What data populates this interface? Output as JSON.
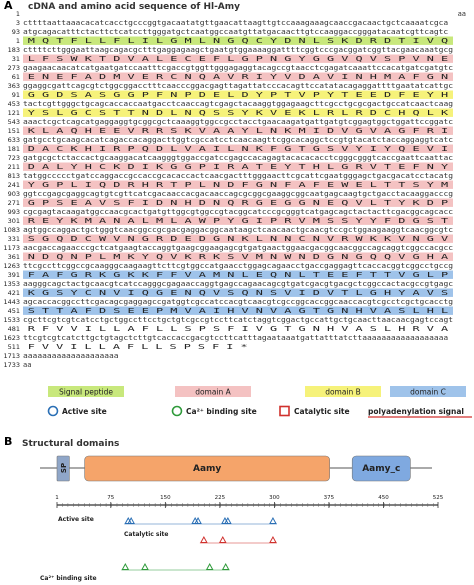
{
  "panel_a": {
    "label": "A",
    "title": "cDNA and amino acid sequence of Hl-Amy",
    "top_num": 1,
    "top_tail": "aa",
    "rows": [
      {
        "num": 3,
        "nt": "cttttaattaaacacatcacctgcccggtgacaatatgttgaacattaagttgtccaaagaaagcaaccgacaactgctcaaaatcgca"
      },
      {
        "num": 93,
        "nt": "atgcagacatttctacttctcatccttgggatgctcaatggccaatgttatgacaacttgtccaaggaccgggatacaatcgttcagtc"
      },
      {
        "num": 1,
        "aa": "MQTFLLFLILGMLNGQCYDNLSKDRDTIVQ",
        "color": "#c8e87c"
      },
      {
        "num": 183,
        "nt": "cttttcttgggaattaagcagacgctttgaggagaagctgaatgtggaaaaggattttcggtcccgacggatcggttacgaacaaatgcg"
      },
      {
        "num": 31,
        "aa": "LFSWKTDVALECEFLGPNGYGGVQVSPVNE",
        "color": "#f4c2c2"
      },
      {
        "num": 273,
        "nt": "gaagaacaacatcatgaatgatccaatttcgaccgtggttgggagaggtacagccgtaacctcgagatcaaattccacatgatcgatgtc"
      },
      {
        "num": 61,
        "aa": "ENEFADMVERCNQAVRIYVDAVINHMAFGN",
        "color": "#f4c2c2"
      },
      {
        "num": 363,
        "nt": "ggaggcgattcagcgtctggcggacctttcaacccggacgagttagattatcccacagttccatatacagaggattttgaatatcattgc"
      },
      {
        "num": 91,
        "aa": "GGDSASGGPFNPDELDYPTVPYTEEDFEYH",
        "color": "#f6f27a"
      },
      {
        "num": 453,
        "nt": "tactcgttgggctgcagcaccaccaatgacctcaaccagtcgagctacaaggtggagaagcttcgcctgcgcgactgccatcaactcaag"
      },
      {
        "num": 121,
        "aa": "YSLGCSTTNDLNQSSYKVEKLRLRDCHQLK",
        "color": "#f6f27a"
      },
      {
        "num": 543,
        "nt": "aaactcgctcagcatgaggaggtgcggcgctcaaaggtggccgcctacctgaacaagatgattgatgtcggagtggctggattccggatc"
      },
      {
        "num": 151,
        "aa": "KLAQHEEVRRSKVAAYLNKMIDVGVAGFRI",
        "color": "#f4c2c2"
      },
      {
        "num": 633,
        "nt": "gatgcctgcaagcacatcagaccacaggacttggtcgccatcctcaacaagttcggcacaggctccgtgtacatctaccaggaggtcatc"
      },
      {
        "num": 181,
        "aa": "DACKHIRPQDLVAILNKFGTGSVYIYQEVI",
        "color": "#f4c2c2"
      },
      {
        "num": 723,
        "nt": "gatgcgctctaccactgcaaggacatcaagggtggaccgatccgagccacagagtacacacacctcgggcgggtcaccgaattcaattac"
      },
      {
        "num": 211,
        "aa": "DALYHCKDIKGGPIRATEYTHLGRVTEFNY",
        "color": "#f4c2c2"
      },
      {
        "num": 813,
        "nt": "tatggccccctgatccaggaccgccaccgcacaccactcaacgactttgggaacttcgcattcgaatgggagctgacgacatcctacatg"
      },
      {
        "num": 241,
        "aa": "YGPLIQDRHRTPLNDFGNFAFEWELTTSYM",
        "color": "#f4c2c2"
      },
      {
        "num": 903,
        "nt": "ggtccgagcgaggcagtgtcgttcatcgacaaccacgacaaccagcgcggcgaaggcggcaatgagcaagtgctgacctacaaggacccg"
      },
      {
        "num": 271,
        "aa": "GPSEAVSFIDNHDNQRGEGGNEQVLTYKDP",
        "color": "#f4c2c2"
      },
      {
        "num": 993,
        "nt": "cgcgagtacaagatggccaacgcactgatgttggcgtggccgtacggcatcccgcgggtcatgagcagctactacttcgacggcagcacc"
      },
      {
        "num": 301,
        "aa": "REYKMANALMLAWPYGIPRVMSSYYFDGST",
        "color": "#f4c2c2"
      },
      {
        "num": 1083,
        "nt": "agtggccaggactgctgggtcaacggccgcgacgaggacggcaataagctcaacaactgcaacgtccgctggaagaaggtcaacggcgtc"
      },
      {
        "num": 331,
        "aa": "SGQDCWVNGRDEDGNKLNNCNVRWKKVNGV",
        "color": "#f4c2c2"
      },
      {
        "num": 1173,
        "nt": "aacgaccagaacccgctcatgaagtaccaggtgaagcggaagagcgtgatgaactggaacgacggcaacggccagcaggtcggccacgcc"
      },
      {
        "num": 361,
        "aa": "NDQNPLMKYQVKRKSVMNWNDGNGQQVGHA",
        "color": "#f4c2c2"
      },
      {
        "num": 1263,
        "nt": "ttcgccttcggccgcaagggcaagaagttcttcgtggccatgaacctggagcagaacctgaccgaggagttcaccacggtcggcctgccg"
      },
      {
        "num": 391,
        "aa": "FAFGRKGKKFFVAMNLEQNLTEEFTTVGLP",
        "color": "#9fc3ea"
      },
      {
        "num": 1353,
        "nt": "aagggcagctactgcaacgtcatccagggcgagaaccaggtgagccagaacagcgtgatcgacgtgacgctcggccactacgccgtgagc"
      },
      {
        "num": 421,
        "aa": "KGSYCNVIQGENQVSQNSVIDVTLGHYAVS",
        "color": "#9fc3ea"
      },
      {
        "num": 1443,
        "nt": "agcaccacggccttcgacagcgaggagccgatggtcgccatccacgtcaacgtcgccggcaccggcaaccacgtcgcctcgctgcacctg"
      },
      {
        "num": 451,
        "aa": "STTAFDSEEPMVAIHVNVAGTGNHVASLHL",
        "color": "#9fc3ea"
      },
      {
        "num": 1533,
        "nt": "cgcttcgtcgtcatcctgctggccttcctgctgtcgccgtccttcatctaggtcggactgccattgctgcaacttaacaacgagtccagt"
      },
      {
        "num": 481,
        "aa": "RFVVILLAFLLSPSFIVGTGNHVASLHRVA",
        "color": "#ffffff"
      },
      {
        "num": 1623,
        "nt": "ttcgtcgtcatcttgctgtagctcttgtcaccaccgacgtccttcatttagaataaatgattatttatcttaaaaaaaaaaaaaaaaaa"
      },
      {
        "num": 511,
        "aa": "FVVILLAFLLSPSFI*",
        "color": "#ffffff"
      },
      {
        "num": 1713,
        "nt": "aaaaaaaaaaaaaaaaaaaa"
      }
    ],
    "end_num": 1733,
    "end_tail": "aa",
    "legend": [
      {
        "label": "Signal peptide",
        "color": "#c8e87c",
        "kind": "box"
      },
      {
        "label": "domain A",
        "color": "#f4c2c2",
        "kind": "box"
      },
      {
        "label": "domain B",
        "color": "#f6f27a",
        "kind": "box"
      },
      {
        "label": "domain C",
        "color": "#9fc3ea",
        "kind": "box"
      },
      {
        "label": "Active site",
        "color": "#2a6fb5",
        "kind": "circle"
      },
      {
        "label": "Ca²⁺ binding site",
        "color": "#2e9a3a",
        "kind": "circle"
      },
      {
        "label": "Catalytic site",
        "color": "#d0312d",
        "kind": "square"
      },
      {
        "label": "polyadenylation signal",
        "color": "#d0312d",
        "kind": "underline"
      }
    ]
  },
  "panel_b": {
    "label": "B",
    "title": "Structural domains",
    "xlim": [
      1,
      525
    ],
    "xticks": [
      1,
      75,
      150,
      225,
      300,
      375,
      450,
      525
    ],
    "domains": [
      {
        "name": "SP",
        "start": 1,
        "end": 18,
        "color": "#8fa6c8"
      },
      {
        "name": "Aamy",
        "start": 39,
        "end": 376,
        "color": "#f5a46a"
      },
      {
        "name": "Aamy_c",
        "start": 407,
        "end": 487,
        "color": "#7fa9e0"
      }
    ],
    "sites": [
      {
        "name": "Active site",
        "color": "#2a6fb5",
        "positions": [
          99,
          103,
          191,
          195,
          232,
          236,
          298
        ]
      },
      {
        "name": "Catalytic site",
        "color": "#d0312d",
        "positions": [
          203,
          229,
          298
        ]
      },
      {
        "name": "Ca²⁺ binding site",
        "color": "#2e9a3a",
        "positions": [
          95,
          122,
          211,
          233
        ]
      }
    ]
  }
}
